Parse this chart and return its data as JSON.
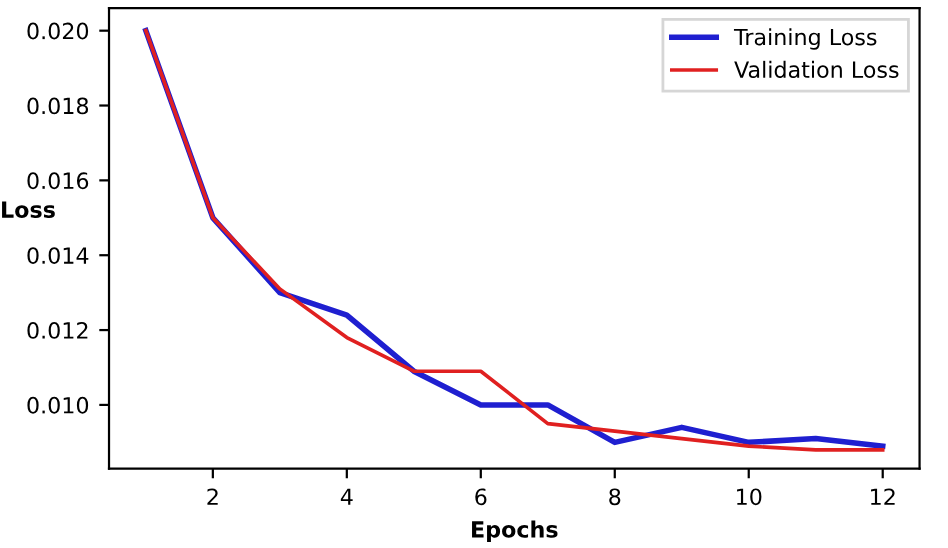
{
  "chart_data": {
    "type": "line",
    "xlabel": "Epochs",
    "ylabel": "Loss",
    "x": [
      1,
      2,
      3,
      4,
      5,
      6,
      7,
      8,
      9,
      10,
      11,
      12
    ],
    "series": [
      {
        "name": "Training Loss",
        "color": "#1f1fd0",
        "values": [
          0.02,
          0.015,
          0.013,
          0.0124,
          0.0109,
          0.01,
          0.01,
          0.009,
          0.0094,
          0.009,
          0.0091,
          0.0089
        ]
      },
      {
        "name": "Validation Loss",
        "color": "#e02020",
        "values": [
          0.02,
          0.015,
          0.0131,
          0.0118,
          0.0109,
          0.0109,
          0.0095,
          0.0093,
          0.0091,
          0.0089,
          0.0088,
          0.0088
        ]
      }
    ],
    "xlim": [
      0.45,
      12.55
    ],
    "ylim": [
      0.0083,
      0.0206
    ],
    "xticks": [
      2,
      4,
      6,
      8,
      10,
      12
    ],
    "yticks": [
      {
        "value": 0.01,
        "label": "0.010"
      },
      {
        "value": 0.012,
        "label": "0.012"
      },
      {
        "value": 0.014,
        "label": "0.014"
      },
      {
        "value": 0.016,
        "label": "0.016"
      },
      {
        "value": 0.018,
        "label": "0.018"
      },
      {
        "value": 0.02,
        "label": "0.020"
      }
    ],
    "legend": "top right",
    "grid": false
  }
}
